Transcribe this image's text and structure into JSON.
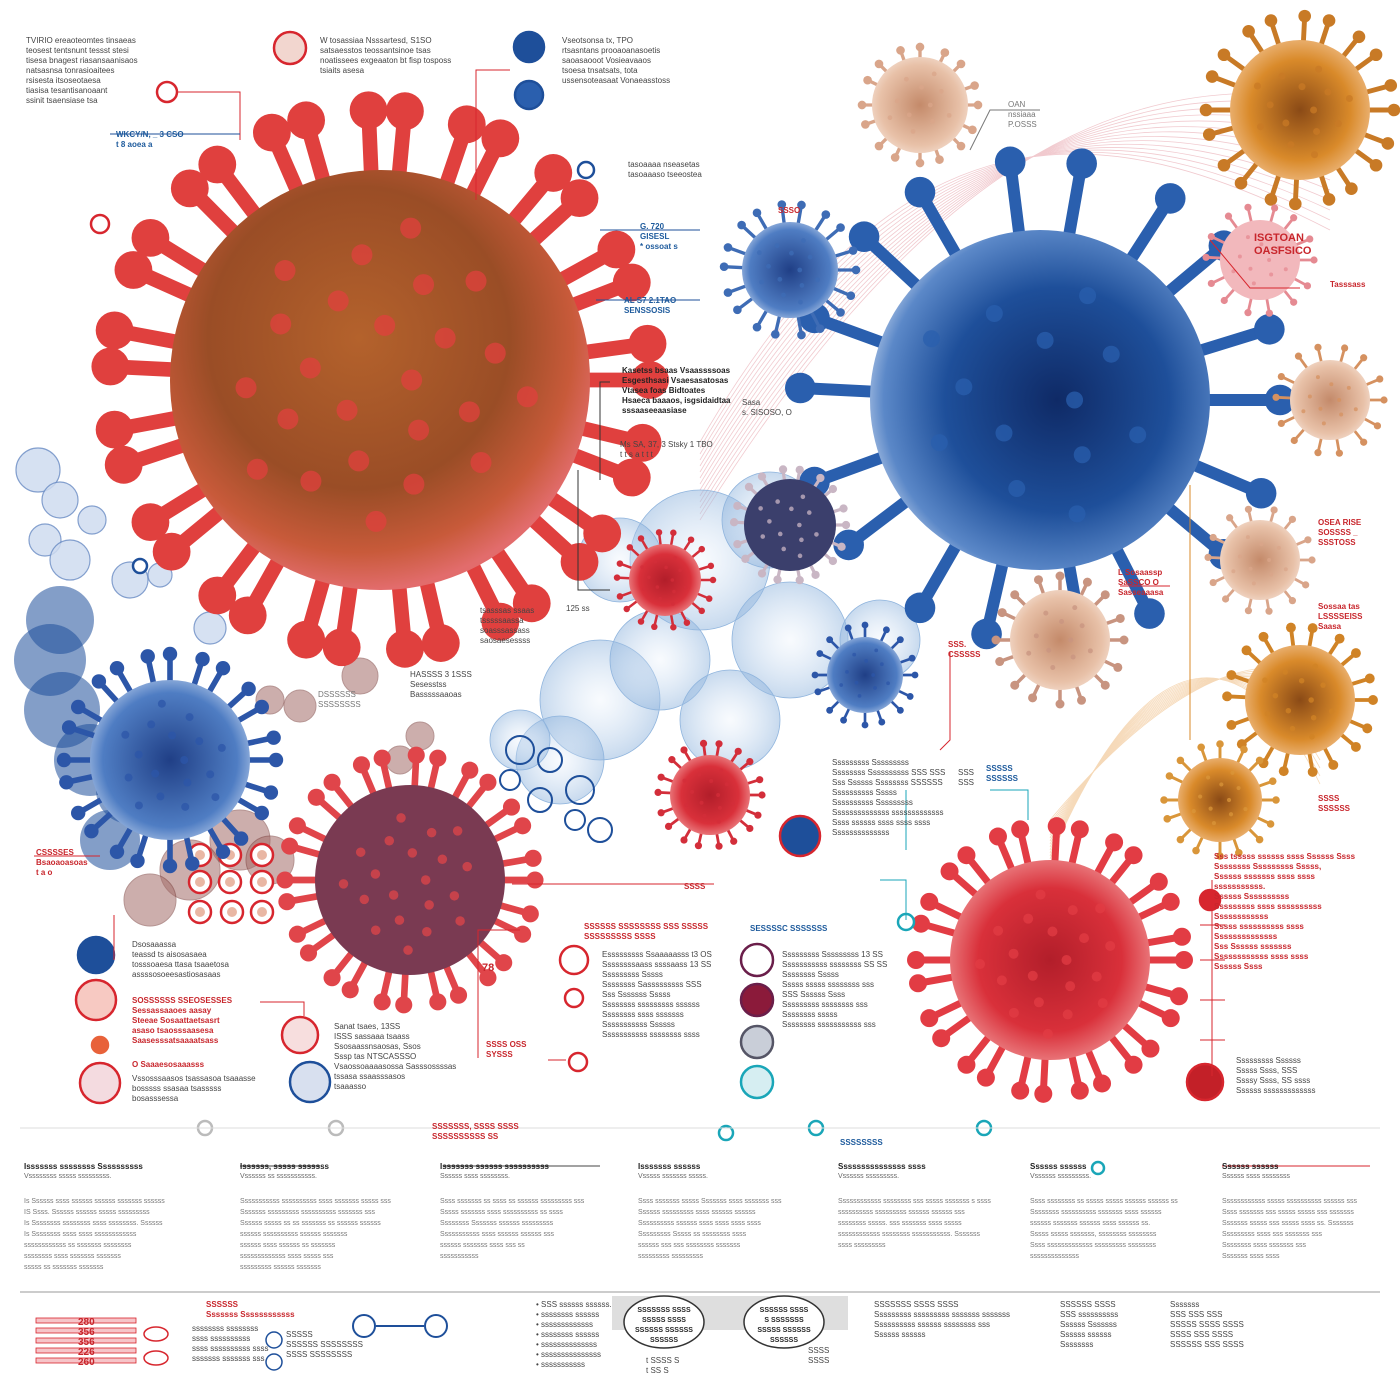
{
  "labels": {
    "tl_block": "TVIRIO  ereaoteomtes tinsaeas\nteosest tentsnunt tessst stesi\ntisesa bnagest riasansaanisaos\nnatsasnsa tonrasioaitees\nrsisesta itsoseotaesa\ntiasisa tesantisanoaant\nssinit tsaensiase tsa",
    "tl_code": "WKCY/N, _ 3 CSO\nt  8  aoea  a",
    "top_center": "W tosassiaa Nsssartesd, S1SO\nsatsaesstos teossantsinoe tsas\nnoatissees exgeaaton bt fisp tosposs\ntsiaits asesa",
    "top_blue": "Vseotsonsa tx, TPO\nrtsasntans prooaoanasoetis\nsaoasaooot Vosieavaaos\ntsoesa tnsatsats, tota\nussensoteasaat Vonaeasstoss",
    "mid_note": "tasoaaaa nseasetas\ntasoaaaso tseeostea",
    "c_code1": "G. 720\nGISESL\n* ossoat s",
    "c_code2": "AL S7 2.1TAO\nSENSSOSIS",
    "c_list": "Kasetss bsaas Vsaassssoas\nEsgesthsasi Vsaesasatosas\nVtasea foas Bidtoates\nHsaeca baaaos, isgsidaidtaa\nsssaaseeaasiase",
    "c_code3": "Ms SA, 37, 3 Stsky 1 TBO\nt  t  s  a  t  t  t",
    "tr_code1": "OAN\nnssiaaa\nP.OSSS",
    "tr_code2": "ISGTOAN\nOASFSICO",
    "tr_small": "Tasssass",
    "blue_small": "SSSO",
    "mid_pair": "Sasa\ns. SISOSO,  O",
    "right_code1": "OSEA RISE\nSOSSSS _\nSSSTOSS",
    "right_code2": "L Sosaassp\nSaSSCO O\nSasseaaasa",
    "right_code3": "Sossaa tas\nLSSSSEISS\nSaasa",
    "orange_code": "SSS.\nCSSSSS",
    "small125": "125  ss",
    "small_list": "tsasssas ssaas\ntsssssaassa\nsoasssassass\nsaosaesessss",
    "mid_red": "HASSSS 3  1SSS\nSesesstss\nBasssssaaoas",
    "mid_red2": "DSSSSSS\nSSSSSSSS",
    "left_red": "CSSSSES\nBsaoaoasoas\nt  a  o",
    "bl_grp1": "Dsosaaassa\nteassd ts aisosasaea\ntosssoaesa ttasa tsaaetosa\nassssosoeesastiosasaas",
    "bl_red": "SOSSSSSS SSEOSESSES\nSessassaaoes aasay\nSteeae Sosaattaetsasrt\nasaso tsaosssaasesa\nSaasesssatsaaaatsass",
    "bl_small": "O Saaaesosaaasss",
    "bl_grp2": "Vssosssaasos tsassasoa tsaaasse\nbosssss ssasaa tsasssss\nbosasssessa",
    "bl_mid": "Sanat tsaes, 13SS\nISSS sassaaa tsaass\nSsosaassnsaosas, Ssos\nSssp tas NTSCASSSO\nVsaossoaaaasossa Sasssossssas\ntssasa ssaasssasos\ntsaaasso",
    "num78": "78",
    "cm_code": "SSSS OSS\nSYSSS",
    "cm_red": "SSSSSS SSSSSSSS SSS SSSSS\nSSSSSSSSS SSSS",
    "cm_list": "Esssssssss Ssaaaaasss t3 OS\nSsssssssaass ssssaass 13 SS\nSssssssss Sssss\nSsssssss Sasssssssss SSS\nSss Sssssss Sssss\nSsssssss sssssssss ssssss\nSsssssss ssss sssssss\nSssssssssss Ssssss\nSssssssssss ssssssss ssss",
    "blue_title": "SESSSSC SSSSSSS",
    "bm_list": "Sssssssss Sssssssss 13 SS\nSssssssssss ssssssss SS SS\nSsssssss Sssss\nSssss sssss ssssssss sss\nSSS Ssssss Ssss\nSssssssss ssssssss sss\nSsssssss sssss\nSsssssss sssssssssss sss",
    "rm_list": "Sssssssss Sssssssss\nSsssssss Ssssssssss SSS SSS\nSss Ssssss Ssssssss SSSSSS\nSsssssssss Sssss\nSsssssssss Sssssssss\nSsssssssssssss sssssssssssss\nSsss ssssss ssss ssss ssss\nSsssssssssssss",
    "ssn": "SSS\nSSS",
    "ssn2": "SSSSS\nSSSSSS",
    "r_red_list": "Sss tsssss ssssss ssss Ssssss Ssss\nSsssssss Sssssssss Sssss,\nSsssss sssssss ssss ssss\nsssssssssss.\nSsssss Ssssssssss\nSssssssss ssss ssssssssss\nSsssssssssss\nSssss ssssssssss ssss\nSsssssssssssss\nSss Ssssss sssssss\nSsssssssssss ssss ssss\nSsssss Ssss",
    "r_bottom": "Sssssssss Ssssss\nSssss Ssss, SSS\nSsssy Ssss, SS ssss\nSsssss sssssssssssss",
    "orange_small": "SSSS\nSSSSSS",
    "tiny_ab": "SSSS",
    "timeline_mid": "SSSSSSS, SSSS SSSS\nSSSSSSSSSS SS",
    "timeline_r": "SSSSSSSS",
    "bottom_cols": [
      {
        "title": "Isssssss ssssssss Ssssssssss",
        "sub": "Vssssssss sssss sssssssss.",
        "body": "Is  Ssssss ssss ssssss ssssss sssssss ssssss\nIS  Ssss. Ssssss ssssss sssss sssssssss\nIs  Ssssssss ssssssss ssss ssssssss. Ssssss\nIs  Ssssssss ssss ssss ssssssssssss\nssssssssssss ss sssssss ssssssss\nssssssss ssss sssssss sssssss\nsssss ss sssssss sssssss"
      },
      {
        "title": "Issssss, sssss sssssss",
        "sub": "Vssssss ss sssssssssss.",
        "body": "Sssssssssss ssssssssss ssss sssssss sssss sss\nSssssss sssssssss ssssssssss sssssss sss\nSsssss sssss ss ss sssssss ss ssssss ssssss\nssssss ssssssssss ssssss sssssss\nssssss ssss ssssss ss sssssss\nsssssssssssss ssss sssss sss\nsssssssss ssssss sssssss"
      },
      {
        "title": "Isssssss ssssss ssssssssss",
        "sub": "Ssssss ssss ssssssss.",
        "body": "Ssss sssssss ss ssss ss ssssss sssssssss sss\nSssss sssssss ssss ssssssssss ss ssss\nSsssssss Sssssss ssssss sssssssss\nSssssssssss ssss ssssss ssssss sss\nssssss sssssss ssss sss ss\nsssssssssss"
      },
      {
        "title": "Isssssss ssssss",
        "sub": "Vsssss sssssss sssss.",
        "body": "Ssss sssssss sssss Sssssss ssss sssssss sss\nSsssss sssssssss ssss ssssss ssssss\nSsssssssss ssssss ssss ssss ssss ssss\nSssssssss Sssss ss ssssssss ssss\nssssss sss sss ssssssss sssssss\nsssssssss sssssssss"
      },
      {
        "title": "Sssssssssssssss ssss",
        "sub": "Vssssss sssssssss.",
        "body": "Ssssssssssss ssssssss sss sssss sssssss s ssss\nssssssssss sssssssss ssssss ssssss sss\nssssssss sssss. sss sssssss ssss sssss\nssssssssssss ssssssss sssssssssss. Sssssss\nssss sssssssss"
      },
      {
        "title": "Ssssss ssssss",
        "sub": "Vssssss sssssssss.",
        "body": "Ssss ssssssss ss sssss sssss ssssss ssssss ss\nSsssssss ssssssssss sssssss ssss ssssss\nssssss sssssss ssssss ssss ssssss ss.\nSssss sssss sssssss, ssssssss ssssssss\nSsss sssssssssssss sssssssss ssssssss\nssssssssssssss"
      },
      {
        "title": "Ssssss ssssss",
        "sub": "Ssssss ssss ssssssss",
        "body": "Ssssssssssss sssss ssssssssss ssssss sss\nSsss sssssss sss sssss sssss sss sssssss\nSssssss sssss sss sssss ssss ss. Sssssss\nSssssssss ssss sss sssssss sss\nSsssssss ssss sssssss sss\nSssssss ssss ssss"
      }
    ],
    "footer_left": "280\n356\n356\n226\n260",
    "footer_red": "SSSSSS\nSssssss Ssssssssssss",
    "footer_a": "ssssssss ssssssss\nssss ssssssssss\nssss ssssssssss ssss\nsssssss sssssss sss",
    "footer_b": "SSSSS\nSSSSSS SSSSSSSS\nSSSS SSSSSSSS",
    "footer_list": "• SSS ssssss ssssss.\n• ssssssss ssssss\n• sssssssssssss\n• ssssssss ssssss\n• ssssssssssssss\n• sssssssssssssss\n• sssssssssss",
    "footer_badge1": "SSSSSSS SSSS\nSSSSS SSSS\nSSSSSS SSSSSS\nSSSSSS",
    "footer_badge2": "SSSSSS SSSS\nS SSSSSSS\nSSSSS SSSSSS\nSSSSSS",
    "footer_badge_sub1": "t  SSSS  S\nt  SS  S",
    "footer_badge_sub2": "SSSS\nSSSS",
    "footer_r1": "SSSSSSS SSSS SSSS\nSssssssss sssssssss sssssss sssssss\nSsssssssss ssssss ssssssss sss\nSsssss ssssss",
    "footer_r2": "SSSSSS SSSS\nSSS ssssssssss\nSsssss Sssssss\nSsssss ssssss\nSsssssss",
    "footer_r3": "Sssssss\nSSS        SSS        SSS\nSSSSS     SSSS      SSSS\nSSSS       SSS        SSSS\nSSSSSS    SSS        SSSS"
  },
  "colors": {
    "virus_red": "#d9303a",
    "virus_brown": "#a0552a",
    "virus_blue": "#1e4f9a",
    "virus_orange": "#d98a2a",
    "accent_teal": "#1aa6b8",
    "accent_red": "#d7262e"
  }
}
